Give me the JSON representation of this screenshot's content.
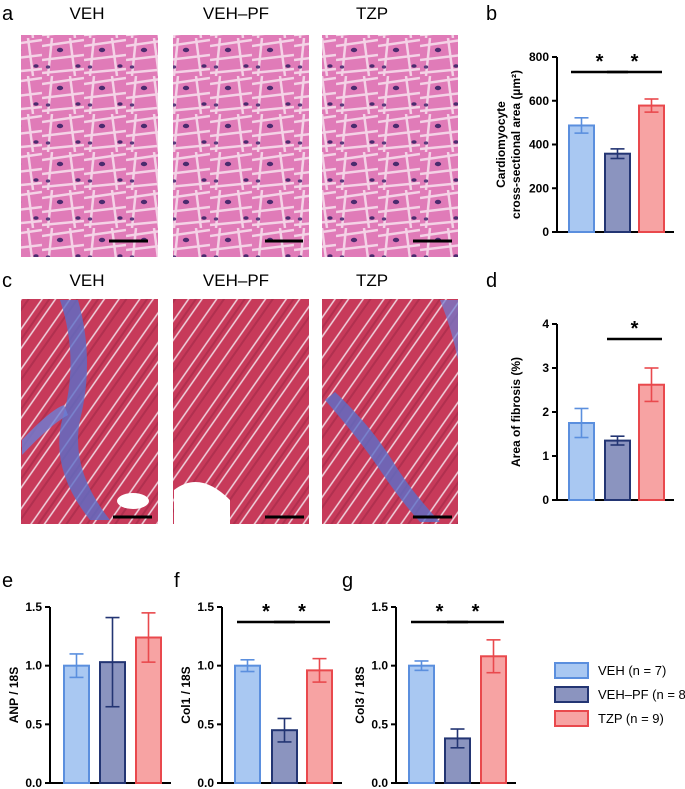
{
  "panel_labels": [
    "a",
    "b",
    "c",
    "d",
    "e",
    "f",
    "g"
  ],
  "colors": {
    "veh_fill": "#a9c8f2",
    "veh_stroke": "#5b8fde",
    "vehpf_fill": "#8b94bf",
    "vehpf_stroke": "#233573",
    "tzp_fill": "#f7a3a3",
    "tzp_stroke": "#e9494d",
    "he_stain": "#e07bb8",
    "he_nucleus": "#4b2b6e",
    "masson_muscle": "#c73a5a",
    "masson_collagen": "#5b6fc9"
  },
  "micrographs": {
    "he_titles": [
      "VEH",
      "VEH–PF",
      "TZP"
    ],
    "masson_titles": [
      "VEH",
      "VEH–PF",
      "TZP"
    ]
  },
  "legend": {
    "items": [
      {
        "label": "VEH (n = 7)",
        "group": "veh"
      },
      {
        "label": "VEH–PF (n = 8)",
        "group": "vehpf"
      },
      {
        "label": "TZP (n = 9)",
        "group": "tzp"
      }
    ]
  },
  "chart_data": [
    {
      "id": "b",
      "type": "bar",
      "categories": [
        "VEH",
        "VEH–PF",
        "TZP"
      ],
      "values": [
        487,
        358,
        578
      ],
      "errors": [
        35,
        22,
        30
      ],
      "ylabel_line1": "Cardiomyocyte",
      "ylabel_line2": "cross-sectional area (µm²)",
      "ylim": [
        0,
        800
      ],
      "yticks": [
        0,
        200,
        400,
        600,
        800
      ],
      "tick_labels": [
        "0",
        "200",
        "400",
        "600",
        "800"
      ],
      "significance": [
        {
          "from": 0,
          "to": 1,
          "label": "*"
        },
        {
          "from": 1,
          "to": 2,
          "label": "*"
        }
      ]
    },
    {
      "id": "d",
      "type": "bar",
      "categories": [
        "VEH",
        "VEH–PF",
        "TZP"
      ],
      "values": [
        1.75,
        1.35,
        2.62
      ],
      "errors": [
        0.33,
        0.1,
        0.38
      ],
      "ylabel": "Area of fibrosis (%)",
      "ylim": [
        0,
        4
      ],
      "yticks": [
        0,
        1,
        2,
        3,
        4
      ],
      "tick_labels": [
        "0",
        "1",
        "2",
        "3",
        "4"
      ],
      "significance": [
        {
          "from": 1,
          "to": 2,
          "label": "*"
        }
      ]
    },
    {
      "id": "e",
      "type": "bar",
      "categories": [
        "VEH",
        "VEH–PF",
        "TZP"
      ],
      "values": [
        1.0,
        1.03,
        1.24
      ],
      "errors": [
        0.1,
        0.38,
        0.21
      ],
      "ylabel": "ANP / 18S",
      "ylim": [
        0,
        1.5
      ],
      "yticks": [
        0,
        0.5,
        1.0,
        1.5
      ],
      "tick_labels": [
        "0.0",
        "0.5",
        "1.0",
        "1.5"
      ],
      "significance": []
    },
    {
      "id": "f",
      "type": "bar",
      "categories": [
        "VEH",
        "VEH–PF",
        "TZP"
      ],
      "values": [
        1.0,
        0.45,
        0.96
      ],
      "errors": [
        0.05,
        0.1,
        0.1
      ],
      "ylabel": "Col1 / 18S",
      "ylim": [
        0,
        1.5
      ],
      "yticks": [
        0,
        0.5,
        1.0,
        1.5
      ],
      "tick_labels": [
        "0.0",
        "0.5",
        "1.0",
        "1.5"
      ],
      "significance": [
        {
          "from": 0,
          "to": 1,
          "label": "*"
        },
        {
          "from": 1,
          "to": 2,
          "label": "*"
        }
      ]
    },
    {
      "id": "g",
      "type": "bar",
      "categories": [
        "VEH",
        "VEH–PF",
        "TZP"
      ],
      "values": [
        1.0,
        0.38,
        1.08
      ],
      "errors": [
        0.04,
        0.08,
        0.14
      ],
      "ylabel": "Col3 / 18S",
      "ylim": [
        0,
        1.5
      ],
      "yticks": [
        0,
        0.5,
        1.0,
        1.5
      ],
      "tick_labels": [
        "0.0",
        "0.5",
        "1.0",
        "1.5"
      ],
      "significance": [
        {
          "from": 0,
          "to": 1,
          "label": "*"
        },
        {
          "from": 1,
          "to": 2,
          "label": "*"
        }
      ]
    }
  ]
}
